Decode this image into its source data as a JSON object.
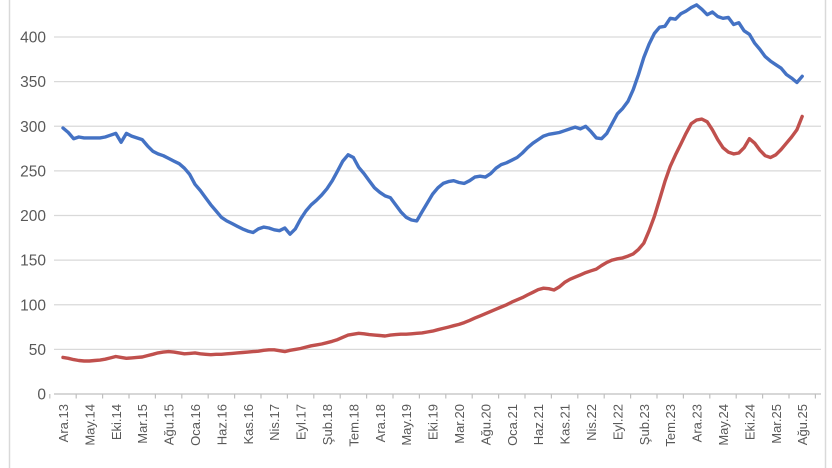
{
  "chart_data": {
    "type": "line",
    "title": "",
    "xlabel": "",
    "ylabel": "",
    "grid": true,
    "legend": "none",
    "x_labels": [
      "Ara.13",
      "May.14",
      "Eki.14",
      "Mar.15",
      "Ağu.15",
      "Oca.16",
      "Haz.16",
      "Kas.16",
      "Nis.17",
      "Eyl.17",
      "Şub.18",
      "Tem.18",
      "Ara.18",
      "May.19",
      "Eki.19",
      "Mar.20",
      "Ağu.20",
      "Oca.21",
      "Haz.21",
      "Kas.21",
      "Nis.22",
      "Eyl.22",
      "Şub.23",
      "Tem.23",
      "Ara.23",
      "May.24",
      "Eki.24",
      "Mar.25",
      "Ağu.25"
    ],
    "points_per_label": 5,
    "y_ticks": [
      0,
      50,
      100,
      150,
      200,
      250,
      300,
      350,
      400
    ],
    "ylim": [
      0,
      445
    ],
    "series": [
      {
        "name": "blue-series",
        "color": "#4472C4",
        "values": [
          298,
          293,
          286,
          288,
          287,
          287,
          287,
          287,
          288,
          290,
          292,
          282,
          292,
          289,
          287,
          285,
          278,
          272,
          269,
          267,
          264,
          261,
          258,
          253,
          246,
          235,
          228,
          220,
          212,
          205,
          198,
          194,
          191,
          188,
          185,
          182.5,
          181,
          185,
          187,
          186,
          184,
          183,
          186,
          179,
          185,
          196,
          205,
          212,
          217,
          223,
          230,
          239,
          250,
          261,
          268,
          265,
          254,
          247,
          239,
          231,
          226,
          222,
          220,
          212,
          204,
          198,
          195,
          194,
          204,
          214,
          224,
          231,
          236,
          238,
          239,
          237,
          236,
          239,
          243,
          244,
          243,
          247,
          253,
          257,
          259,
          262,
          265,
          270,
          276,
          281,
          285,
          289,
          291,
          292,
          293,
          295,
          297,
          299,
          297,
          300,
          294,
          287,
          286,
          292,
          303,
          314,
          320,
          328,
          341,
          358,
          377,
          392,
          404,
          411,
          412,
          421,
          420,
          426,
          429,
          433,
          436,
          431,
          425,
          428,
          423,
          421,
          422,
          414,
          416,
          407,
          403,
          393,
          386,
          378,
          373,
          369,
          365,
          358,
          354,
          349,
          356
        ]
      },
      {
        "name": "red-series",
        "color": "#C0504D",
        "values": [
          41,
          40,
          38.5,
          37.5,
          37,
          37,
          37.5,
          38,
          39,
          40.5,
          42,
          41,
          40,
          40.5,
          41,
          41.5,
          43,
          44.5,
          46,
          47,
          47.5,
          47,
          46,
          45,
          45.5,
          46,
          45,
          44.5,
          44,
          44.5,
          44.5,
          45,
          45.5,
          46,
          46.5,
          47,
          47.5,
          48,
          49,
          49.5,
          49.5,
          48.5,
          47.5,
          49,
          50,
          51,
          52.5,
          54,
          55,
          56,
          57.5,
          59,
          61,
          63.5,
          66,
          67,
          68,
          67.5,
          66.5,
          66,
          65.5,
          65,
          66,
          66.5,
          67,
          67,
          67.5,
          68,
          68.5,
          69.5,
          70.5,
          72,
          73.5,
          75,
          76.5,
          78,
          80,
          82.5,
          85,
          87.5,
          90,
          92.5,
          95,
          97.5,
          100,
          103,
          105.5,
          108,
          111,
          114,
          117,
          118.5,
          118,
          116.5,
          120,
          125,
          128.5,
          131,
          133.5,
          136,
          138,
          140,
          144,
          147.5,
          150,
          151.5,
          152.5,
          154.5,
          157,
          162,
          169,
          183,
          199,
          218,
          238,
          255,
          268,
          280,
          292,
          303,
          307,
          308,
          305,
          296,
          285,
          276,
          271,
          269,
          270,
          276,
          286,
          281,
          273,
          267,
          265,
          268,
          274,
          281,
          288,
          296,
          311
        ]
      }
    ]
  },
  "colors": {
    "background": "#FFFFFF",
    "gridline": "#D9D9D9",
    "axis_line": "#BFBFBF",
    "tick_mark": "#BFBFBF",
    "tick_label": "#595959",
    "frame_border": "#D9D9D9"
  }
}
